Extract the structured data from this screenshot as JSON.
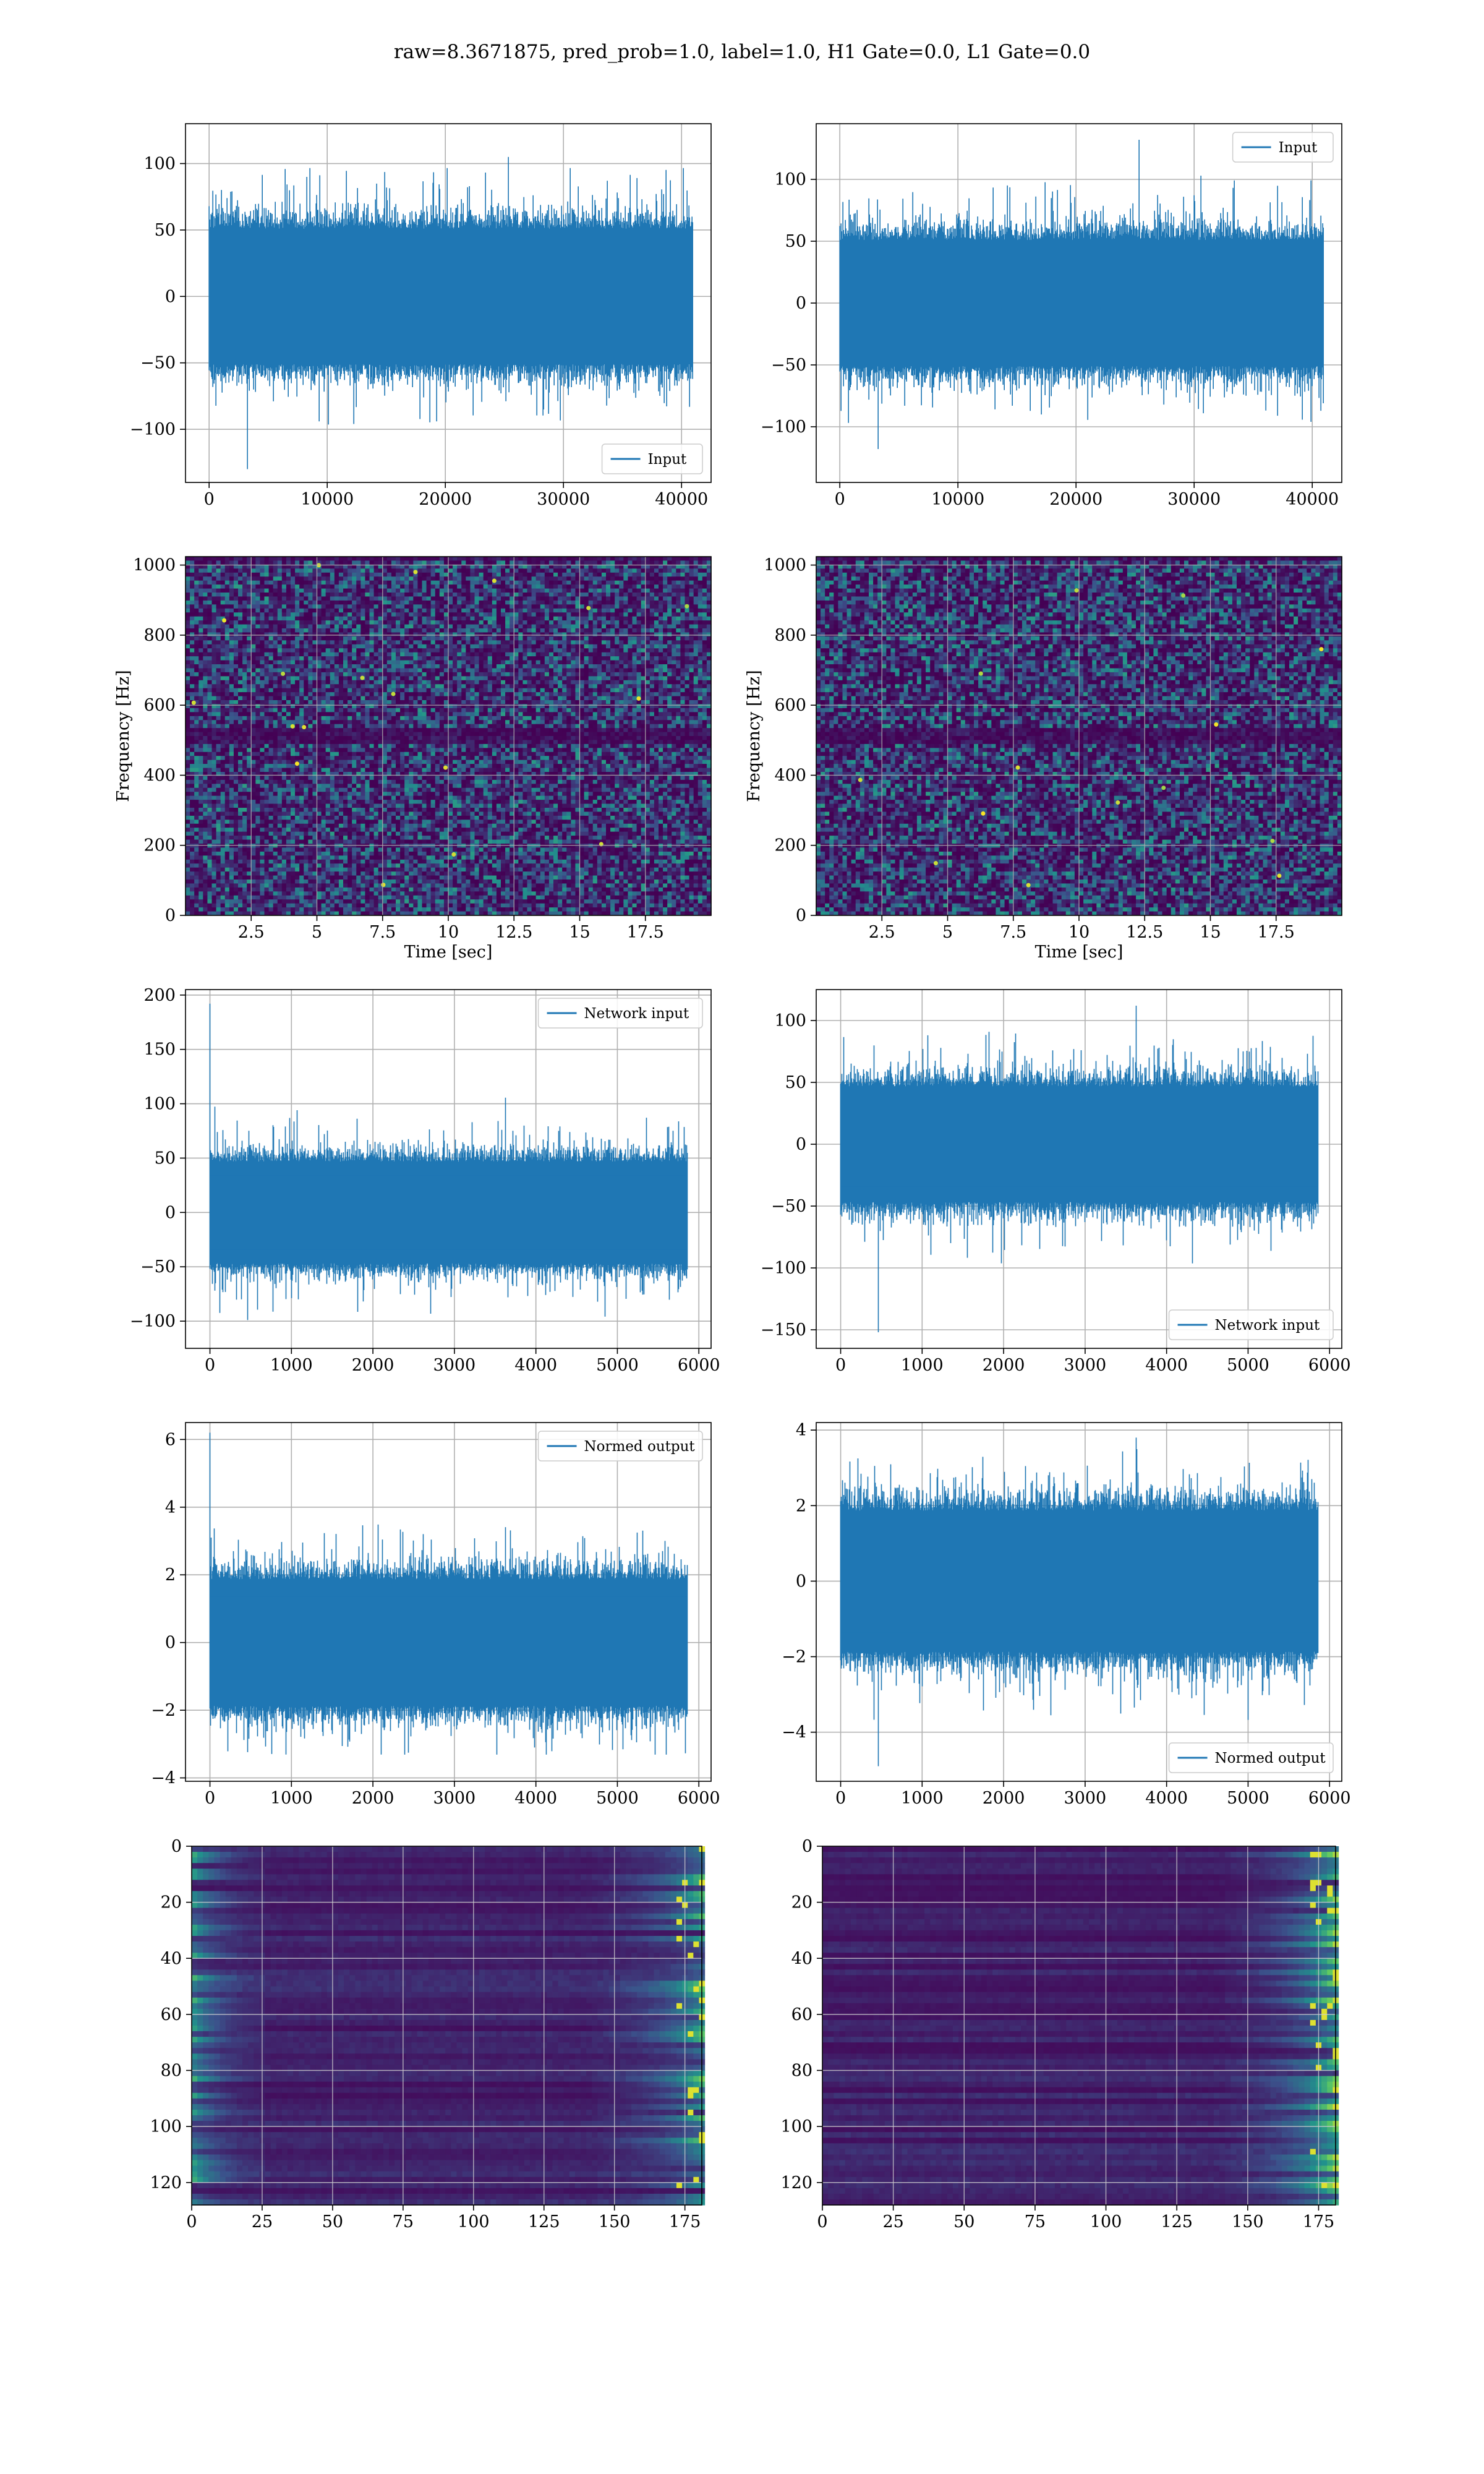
{
  "suptitle": "raw=8.3671875, pred_prob=1.0, label=1.0, H1 Gate=0.0, L1 Gate=0.0",
  "colors": {
    "line": "#1f77b4",
    "grid": "#b0b0b0",
    "viridis_dark": "#440154",
    "viridis_mid": "#21918c",
    "viridis_bright": "#fde725"
  },
  "chart_data": [
    {
      "id": "input-h1",
      "type": "line",
      "row": 0,
      "col": 0,
      "legend": "Input",
      "legend_loc": "lower-right",
      "xlim": [
        -2000,
        42500
      ],
      "ylim": [
        -140,
        130
      ],
      "xticks": [
        0,
        10000,
        20000,
        30000,
        40000
      ],
      "yticks": [
        -100,
        -50,
        0,
        50,
        100
      ],
      "signal": {
        "n_samples": 40960,
        "typical_amplitude": 60,
        "max": 105,
        "min": -130
      }
    },
    {
      "id": "input-l1",
      "type": "line",
      "row": 0,
      "col": 1,
      "legend": "Input",
      "legend_loc": "upper-right",
      "xlim": [
        -2000,
        42500
      ],
      "ylim": [
        -145,
        145
      ],
      "xticks": [
        0,
        10000,
        20000,
        30000,
        40000
      ],
      "yticks": [
        -100,
        -50,
        0,
        50,
        100
      ],
      "signal": {
        "n_samples": 40960,
        "typical_amplitude": 60,
        "max": 132,
        "min": -118
      }
    },
    {
      "id": "spectrogram-h1",
      "type": "heatmap",
      "row": 1,
      "col": 0,
      "xlabel": "Time [sec]",
      "ylabel": "Frequency [Hz]",
      "xlim": [
        0,
        20
      ],
      "ylim": [
        0,
        1024
      ],
      "xticks": [
        2.5,
        5.0,
        7.5,
        10.0,
        12.5,
        15.0,
        17.5
      ],
      "yticks": [
        0,
        200,
        400,
        600,
        800,
        1000
      ],
      "features": {
        "dark_band_hz": 512,
        "dark_band_top_hz": 1010,
        "bright_spots": 18
      }
    },
    {
      "id": "spectrogram-l1",
      "type": "heatmap",
      "row": 1,
      "col": 1,
      "xlabel": "Time [sec]",
      "ylabel": "Frequency [Hz]",
      "xlim": [
        0,
        20
      ],
      "ylim": [
        0,
        1024
      ],
      "xticks": [
        2.5,
        5.0,
        7.5,
        10.0,
        12.5,
        15.0,
        17.5
      ],
      "yticks": [
        0,
        200,
        400,
        600,
        800,
        1000
      ],
      "features": {
        "dark_band_hz": 512,
        "dark_band_top_hz": 1010,
        "bright_spots": 14
      }
    },
    {
      "id": "network-input-h1",
      "type": "line",
      "row": 2,
      "col": 0,
      "legend": "Network input",
      "legend_loc": "upper-right",
      "xlim": [
        -300,
        6150
      ],
      "ylim": [
        -125,
        205
      ],
      "xticks": [
        0,
        1000,
        2000,
        3000,
        4000,
        5000,
        6000
      ],
      "yticks": [
        -100,
        -50,
        0,
        50,
        100,
        150,
        200
      ],
      "signal": {
        "n_samples": 5860,
        "typical_amplitude": 55,
        "max": 192,
        "min": -110,
        "spike_at": 0
      }
    },
    {
      "id": "network-input-l1",
      "type": "line",
      "row": 2,
      "col": 1,
      "legend": "Network input",
      "legend_loc": "lower-right",
      "xlim": [
        -300,
        6150
      ],
      "ylim": [
        -165,
        125
      ],
      "xticks": [
        0,
        1000,
        2000,
        3000,
        4000,
        5000,
        6000
      ],
      "yticks": [
        -150,
        -100,
        -50,
        0,
        50,
        100
      ],
      "signal": {
        "n_samples": 5860,
        "typical_amplitude": 55,
        "max": 112,
        "min": -152
      }
    },
    {
      "id": "normed-output-h1",
      "type": "line",
      "row": 3,
      "col": 0,
      "legend": "Normed output",
      "legend_loc": "upper-right",
      "xlim": [
        -300,
        6150
      ],
      "ylim": [
        -4.1,
        6.5
      ],
      "xticks": [
        0,
        1000,
        2000,
        3000,
        4000,
        5000,
        6000
      ],
      "yticks": [
        -4,
        -2,
        0,
        2,
        4,
        6
      ],
      "signal": {
        "n_samples": 5860,
        "typical_amplitude": 2.2,
        "max": 6.2,
        "min": -3.6,
        "spike_at": 0
      }
    },
    {
      "id": "normed-output-l1",
      "type": "line",
      "row": 3,
      "col": 1,
      "legend": "Normed output",
      "legend_loc": "lower-right",
      "xlim": [
        -300,
        6150
      ],
      "ylim": [
        -5.3,
        4.2
      ],
      "xticks": [
        0,
        1000,
        2000,
        3000,
        4000,
        5000,
        6000
      ],
      "yticks": [
        -4,
        -2,
        0,
        2,
        4
      ],
      "signal": {
        "n_samples": 5860,
        "typical_amplitude": 2.2,
        "max": 3.8,
        "min": -4.9
      }
    },
    {
      "id": "feature-map-h1",
      "type": "heatmap",
      "row": 4,
      "col": 0,
      "xlim": [
        0,
        181
      ],
      "ylim": [
        128,
        0
      ],
      "xticks": [
        0,
        25,
        50,
        75,
        100,
        125,
        150,
        175
      ],
      "yticks": [
        0,
        20,
        40,
        60,
        80,
        100,
        120
      ],
      "features": {
        "bright_edges": "left and right"
      }
    },
    {
      "id": "feature-map-l1",
      "type": "heatmap",
      "row": 4,
      "col": 1,
      "xlim": [
        0,
        181
      ],
      "ylim": [
        128,
        0
      ],
      "xticks": [
        0,
        25,
        50,
        75,
        100,
        125,
        150,
        175
      ],
      "yticks": [
        0,
        20,
        40,
        60,
        80,
        100,
        120
      ],
      "features": {
        "bright_edges": "right"
      }
    }
  ]
}
